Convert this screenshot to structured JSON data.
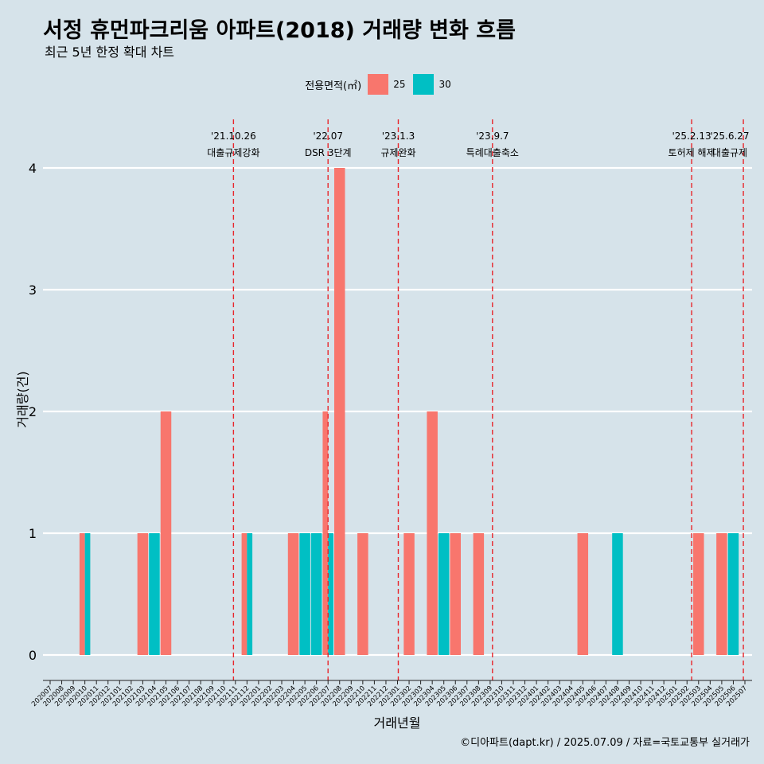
{
  "title": "서정 휴먼파크리움 아파트(2018) 거래량 변화 흐름",
  "subtitle": "최근 5년 한정 확대 차트",
  "caption": "©디아파트(dapt.kr) / 2025.07.09 / 자료=국토교통부 실거래가",
  "legend": {
    "title": "전용면적(㎡)",
    "items": [
      {
        "label": "25",
        "color": "#F8766D"
      },
      {
        "label": "30",
        "color": "#00BFC4"
      }
    ]
  },
  "chart_data": {
    "type": "bar",
    "xlabel": "거래년월",
    "ylabel": "거래량(건)",
    "ylim": [
      0,
      4
    ],
    "yticks": [
      0,
      1,
      2,
      3,
      4
    ],
    "grid": true,
    "legend_position": "top",
    "categories": [
      "202007",
      "202008",
      "202009",
      "202010",
      "202011",
      "202012",
      "202101",
      "202102",
      "202103",
      "202104",
      "202105",
      "202106",
      "202107",
      "202108",
      "202109",
      "202110",
      "202111",
      "202112",
      "202201",
      "202202",
      "202203",
      "202204",
      "202205",
      "202206",
      "202207",
      "202208",
      "202209",
      "202210",
      "202211",
      "202212",
      "202301",
      "202302",
      "202303",
      "202304",
      "202305",
      "202306",
      "202307",
      "202308",
      "202309",
      "202310",
      "202311",
      "202312",
      "202401",
      "202402",
      "202403",
      "202404",
      "202405",
      "202406",
      "202407",
      "202408",
      "202409",
      "202410",
      "202411",
      "202412",
      "202501",
      "202502",
      "202503",
      "202504",
      "202505",
      "202506",
      "202507"
    ],
    "series": [
      {
        "name": "25",
        "color": "#F8766D",
        "values": [
          0,
          0,
          0,
          1,
          0,
          0,
          0,
          0,
          1,
          0,
          2,
          0,
          0,
          0,
          0,
          0,
          0,
          1,
          0,
          0,
          0,
          1,
          0,
          0,
          2,
          4,
          0,
          1,
          0,
          0,
          0,
          1,
          0,
          2,
          0,
          1,
          0,
          1,
          0,
          0,
          0,
          0,
          0,
          0,
          0,
          0,
          1,
          0,
          0,
          0,
          0,
          0,
          0,
          0,
          0,
          0,
          1,
          0,
          1,
          0,
          0
        ]
      },
      {
        "name": "30",
        "color": "#00BFC4",
        "values": [
          0,
          0,
          0,
          1,
          0,
          0,
          0,
          0,
          0,
          1,
          0,
          0,
          0,
          0,
          0,
          0,
          0,
          1,
          0,
          0,
          0,
          0,
          1,
          1,
          1,
          0,
          0,
          0,
          0,
          0,
          0,
          0,
          0,
          0,
          1,
          0,
          0,
          0,
          0,
          0,
          0,
          0,
          0,
          0,
          0,
          0,
          0,
          0,
          0,
          1,
          0,
          0,
          0,
          0,
          0,
          0,
          0,
          0,
          0,
          1,
          0
        ]
      }
    ],
    "events": [
      {
        "date": "'21.10.26",
        "label": "대출규제강화",
        "month": "202110",
        "day": 26
      },
      {
        "date": "'22.07",
        "label": "DSR 3단계",
        "month": "202207",
        "day": 1
      },
      {
        "date": "'23.1.3",
        "label": "규제완화",
        "month": "202301",
        "day": 3
      },
      {
        "date": "'23.9.7",
        "label": "특례대출축소",
        "month": "202309",
        "day": 7
      },
      {
        "date": "'25.2.13",
        "label": "토허제 해제",
        "month": "202502",
        "day": 13
      },
      {
        "date": "'25.6.27",
        "label": "대출규제",
        "month": "202506",
        "day": 27
      }
    ]
  }
}
